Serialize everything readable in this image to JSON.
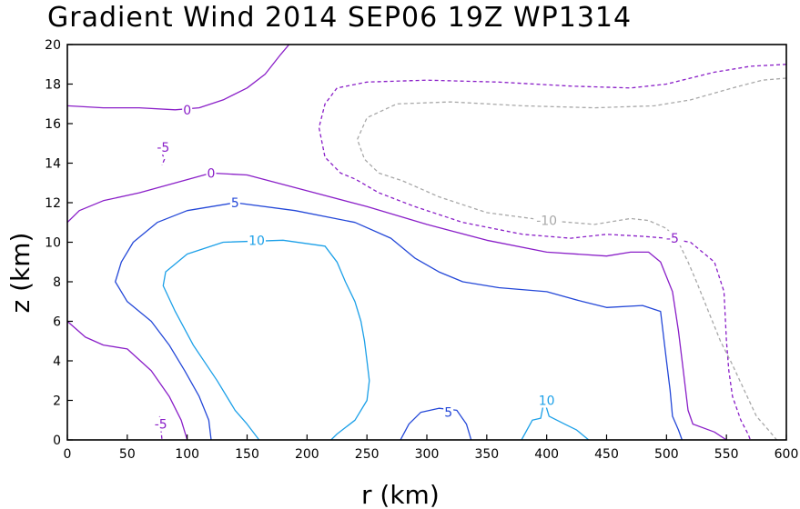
{
  "chart_data": {
    "type": "contour",
    "title": "Gradient Wind 2014 SEP06 19Z   WP1314",
    "xlabel": "r (km)",
    "ylabel": "z (km)",
    "xlim": [
      0,
      600
    ],
    "ylim": [
      0,
      20
    ],
    "xticks": [
      0,
      50,
      100,
      150,
      200,
      250,
      300,
      350,
      400,
      450,
      500,
      550,
      600
    ],
    "yticks": [
      0,
      2,
      4,
      6,
      8,
      10,
      12,
      14,
      16,
      18,
      20
    ],
    "grid": false,
    "contours": [
      {
        "level": "0",
        "color": "#8a1fc8",
        "dashed": false,
        "label_at": [
          100,
          16.7
        ],
        "points": [
          [
            0,
            16.9
          ],
          [
            30,
            16.8
          ],
          [
            60,
            16.8
          ],
          [
            90,
            16.7
          ],
          [
            110,
            16.8
          ],
          [
            130,
            17.2
          ],
          [
            150,
            17.8
          ],
          [
            165,
            18.5
          ],
          [
            178,
            19.5
          ],
          [
            185,
            20
          ]
        ]
      },
      {
        "level": "-5",
        "color": "#8a1fc8",
        "dashed": true,
        "label_at": [
          80,
          14.8
        ],
        "points": [
          [
            79,
            14.5
          ],
          [
            81,
            14.2
          ],
          [
            79,
            13.9
          ]
        ]
      },
      {
        "level": "0",
        "color": "#8a1fc8",
        "dashed": false,
        "label_at": [
          120,
          13.5
        ],
        "points": [
          [
            0,
            11.0
          ],
          [
            10,
            11.6
          ],
          [
            30,
            12.1
          ],
          [
            60,
            12.5
          ],
          [
            90,
            13.0
          ],
          [
            120,
            13.5
          ],
          [
            150,
            13.4
          ],
          [
            200,
            12.6
          ],
          [
            250,
            11.8
          ],
          [
            300,
            10.9
          ],
          [
            350,
            10.1
          ],
          [
            400,
            9.5
          ],
          [
            450,
            9.3
          ],
          [
            470,
            9.5
          ],
          [
            485,
            9.5
          ],
          [
            495,
            9.0
          ],
          [
            505,
            7.5
          ],
          [
            510,
            5.5
          ],
          [
            514,
            3.5
          ],
          [
            518,
            1.5
          ],
          [
            522,
            0.8
          ],
          [
            540,
            0.4
          ],
          [
            550,
            0
          ]
        ]
      },
      {
        "level": "0",
        "color": "#8a1fc8",
        "dashed": false,
        "points": [
          [
            0,
            6.0
          ],
          [
            15,
            5.2
          ],
          [
            30,
            4.8
          ],
          [
            50,
            4.6
          ],
          [
            70,
            3.5
          ],
          [
            85,
            2.2
          ],
          [
            95,
            1.0
          ],
          [
            100,
            0
          ]
        ]
      },
      {
        "level": "-5",
        "color": "#8a1fc8",
        "dashed": true,
        "label_at": [
          78,
          0.8
        ],
        "points": [
          [
            77,
            1.2
          ],
          [
            78,
            0.6
          ],
          [
            79,
            0
          ]
        ]
      },
      {
        "level": "-5",
        "color": "#8a1fc8",
        "dashed": true,
        "label_at": [
          505,
          10.2
        ],
        "points": [
          [
            600,
            19.0
          ],
          [
            570,
            18.9
          ],
          [
            540,
            18.6
          ],
          [
            500,
            18.0
          ],
          [
            470,
            17.8
          ],
          [
            420,
            17.9
          ],
          [
            360,
            18.1
          ],
          [
            300,
            18.2
          ],
          [
            250,
            18.1
          ],
          [
            225,
            17.8
          ],
          [
            215,
            17.0
          ],
          [
            210,
            15.8
          ],
          [
            215,
            14.3
          ],
          [
            228,
            13.5
          ],
          [
            240,
            13.2
          ],
          [
            260,
            12.5
          ],
          [
            290,
            11.8
          ],
          [
            330,
            11.0
          ],
          [
            380,
            10.4
          ],
          [
            420,
            10.2
          ],
          [
            450,
            10.4
          ],
          [
            480,
            10.3
          ],
          [
            500,
            10.2
          ],
          [
            520,
            10.0
          ],
          [
            540,
            9.0
          ],
          [
            548,
            7.5
          ],
          [
            550,
            5.0
          ],
          [
            552,
            3.5
          ],
          [
            555,
            2.2
          ],
          [
            562,
            1.0
          ],
          [
            568,
            0.3
          ],
          [
            570,
            0
          ]
        ]
      },
      {
        "level": "-10",
        "color": "#a8a8a8",
        "dashed": true,
        "label_at": [
          400,
          11.1
        ],
        "points": [
          [
            600,
            18.3
          ],
          [
            580,
            18.2
          ],
          [
            555,
            17.8
          ],
          [
            520,
            17.2
          ],
          [
            490,
            16.9
          ],
          [
            440,
            16.8
          ],
          [
            380,
            16.9
          ],
          [
            320,
            17.1
          ],
          [
            275,
            17.0
          ],
          [
            250,
            16.3
          ],
          [
            242,
            15.2
          ],
          [
            248,
            14.2
          ],
          [
            260,
            13.5
          ],
          [
            280,
            13.1
          ],
          [
            310,
            12.3
          ],
          [
            350,
            11.5
          ],
          [
            400,
            11.1
          ],
          [
            440,
            10.9
          ],
          [
            470,
            11.2
          ],
          [
            485,
            11.1
          ],
          [
            500,
            10.7
          ],
          [
            510,
            10.0
          ],
          [
            518,
            9.0
          ],
          [
            525,
            8.0
          ],
          [
            535,
            6.5
          ],
          [
            545,
            5.0
          ],
          [
            555,
            3.8
          ],
          [
            565,
            2.5
          ],
          [
            575,
            1.2
          ],
          [
            585,
            0.5
          ],
          [
            592,
            0
          ]
        ]
      },
      {
        "level": "5",
        "color": "#2448d8",
        "dashed": false,
        "label_at": [
          140,
          12.0
        ],
        "points": [
          [
            120,
            0
          ],
          [
            118,
            1.0
          ],
          [
            110,
            2.2
          ],
          [
            98,
            3.5
          ],
          [
            85,
            4.8
          ],
          [
            70,
            6.0
          ],
          [
            50,
            7.0
          ],
          [
            40,
            8.0
          ],
          [
            45,
            9.0
          ],
          [
            55,
            10.0
          ],
          [
            75,
            11.0
          ],
          [
            100,
            11.6
          ],
          [
            140,
            12.0
          ],
          [
            190,
            11.6
          ],
          [
            240,
            11.0
          ],
          [
            270,
            10.2
          ],
          [
            290,
            9.2
          ],
          [
            310,
            8.5
          ],
          [
            330,
            8.0
          ],
          [
            360,
            7.7
          ],
          [
            400,
            7.5
          ],
          [
            430,
            7.0
          ],
          [
            450,
            6.7
          ],
          [
            480,
            6.8
          ],
          [
            495,
            6.5
          ],
          [
            500,
            4.0
          ],
          [
            503,
            2.5
          ],
          [
            505,
            1.2
          ],
          [
            510,
            0.5
          ],
          [
            513,
            0
          ]
        ]
      },
      {
        "level": "5",
        "color": "#2448d8",
        "dashed": false,
        "label_at": [
          318,
          1.4
        ],
        "points": [
          [
            278,
            0
          ],
          [
            285,
            0.8
          ],
          [
            295,
            1.4
          ],
          [
            310,
            1.6
          ],
          [
            325,
            1.5
          ],
          [
            333,
            0.8
          ],
          [
            337,
            0
          ]
        ]
      },
      {
        "level": "10",
        "color": "#1ca0e8",
        "dashed": false,
        "label_at": [
          158,
          10.1
        ],
        "points": [
          [
            160,
            0
          ],
          [
            150,
            0.8
          ],
          [
            140,
            1.5
          ],
          [
            125,
            3.0
          ],
          [
            105,
            4.8
          ],
          [
            90,
            6.5
          ],
          [
            80,
            7.8
          ],
          [
            82,
            8.5
          ],
          [
            100,
            9.4
          ],
          [
            130,
            10.0
          ],
          [
            180,
            10.1
          ],
          [
            215,
            9.8
          ],
          [
            225,
            9.0
          ],
          [
            232,
            8.0
          ],
          [
            240,
            7.0
          ],
          [
            245,
            6.0
          ],
          [
            248,
            5.0
          ],
          [
            250,
            4.0
          ],
          [
            252,
            3.0
          ],
          [
            250,
            2.0
          ],
          [
            240,
            1.0
          ],
          [
            225,
            0.3
          ],
          [
            220,
            0
          ]
        ]
      },
      {
        "level": "10",
        "color": "#1ca0e8",
        "dashed": false,
        "label_at": [
          400,
          2.0
        ],
        "points": [
          [
            379,
            0
          ],
          [
            388,
            1.0
          ],
          [
            395,
            1.1
          ],
          [
            398,
            2.0
          ],
          [
            402,
            1.2
          ],
          [
            415,
            0.8
          ],
          [
            425,
            0.5
          ],
          [
            435,
            0
          ]
        ]
      }
    ]
  }
}
